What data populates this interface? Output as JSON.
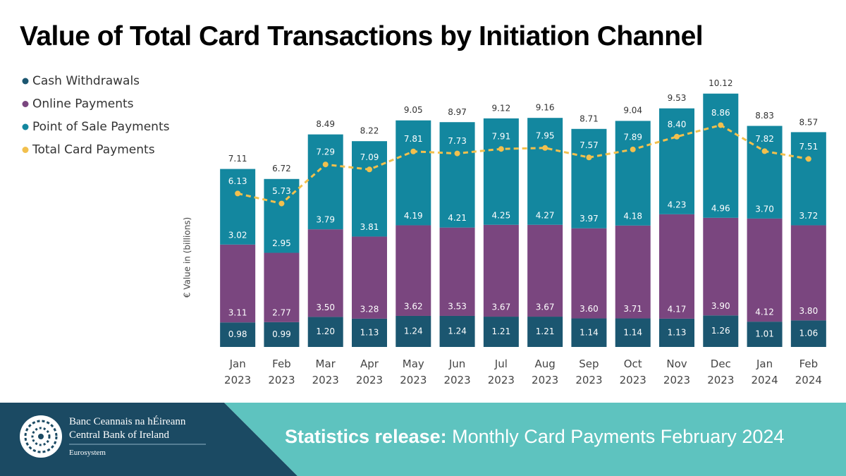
{
  "title": "Value of Total Card Transactions by Initiation Channel",
  "chart_data": {
    "type": "bar",
    "stacked": true,
    "y_label": "€ Value in (billions)",
    "categories": [
      "Jan 2023",
      "Feb 2023",
      "Mar 2023",
      "Apr 2023",
      "May 2023",
      "Jun 2023",
      "Jul 2023",
      "Aug 2023",
      "Sep 2023",
      "Oct 2023",
      "Nov 2023",
      "Dec 2023",
      "Jan 2024",
      "Feb 2024"
    ],
    "ylim": [
      0,
      11
    ],
    "series": [
      {
        "name": "Cash Withdrawals",
        "color": "#1b5670",
        "values": [
          0.98,
          0.99,
          1.2,
          1.13,
          1.24,
          1.24,
          1.21,
          1.21,
          1.14,
          1.14,
          1.13,
          1.26,
          1.01,
          1.06
        ],
        "value_labels": [
          "0.98",
          "0.99",
          "1.20",
          "1.13",
          "1.24",
          "1.24",
          "1.21",
          "1.21",
          "1.14",
          "1.14",
          "1.13",
          "1.26",
          "1.01",
          "1.06"
        ]
      },
      {
        "name": "Online Payments",
        "color": "#7a467f",
        "values": [
          3.11,
          2.77,
          3.5,
          3.28,
          3.62,
          3.53,
          3.67,
          3.67,
          3.6,
          3.71,
          4.17,
          3.9,
          4.12,
          3.8
        ],
        "value_labels": [
          "3.11",
          "2.77",
          "3.50",
          "3.28",
          "3.62",
          "3.53",
          "3.67",
          "3.67",
          "3.60",
          "3.71",
          "4.17",
          "3.90",
          "4.12",
          "3.80"
        ]
      },
      {
        "name": "Point of Sale Payments",
        "color": "#13879f",
        "values": [
          3.02,
          2.95,
          3.79,
          3.81,
          4.19,
          4.21,
          4.25,
          4.27,
          3.97,
          4.18,
          4.23,
          4.96,
          3.7,
          3.72
        ],
        "value_labels": [
          "3.02",
          "2.95",
          "3.79",
          "3.81",
          "4.19",
          "4.21",
          "4.25",
          "4.27",
          "3.97",
          "4.18",
          "4.23",
          "4.96",
          "3.70",
          "3.72"
        ]
      },
      {
        "name": "Total Card Payments",
        "type": "line",
        "dashed": true,
        "color": "#f2c04d",
        "values": [
          6.13,
          5.73,
          7.29,
          7.09,
          7.81,
          7.73,
          7.91,
          7.95,
          7.57,
          7.89,
          8.4,
          8.86,
          7.82,
          7.51
        ],
        "value_labels": [
          "6.13",
          "5.73",
          "7.29",
          "7.09",
          "7.81",
          "7.73",
          "7.91",
          "7.95",
          "7.57",
          "7.89",
          "8.40",
          "8.86",
          "7.82",
          "7.51"
        ]
      }
    ],
    "totals": [
      7.11,
      6.72,
      8.49,
      8.22,
      9.05,
      8.97,
      9.12,
      9.16,
      8.71,
      9.04,
      9.53,
      10.12,
      8.83,
      8.57
    ],
    "total_labels": [
      "7.11",
      "6.72",
      "8.49",
      "8.22",
      "9.05",
      "8.97",
      "9.12",
      "9.16",
      "8.71",
      "9.04",
      "9.53",
      "10.12",
      "8.83",
      "8.57"
    ]
  },
  "footer": {
    "bank_irish": "Banc Ceannais na hÉireann",
    "bank_english": "Central Bank of Ireland",
    "eurosystem": "Eurosystem",
    "release_label": "Statistics release:",
    "release_text": "Monthly Card Payments February 2024"
  }
}
